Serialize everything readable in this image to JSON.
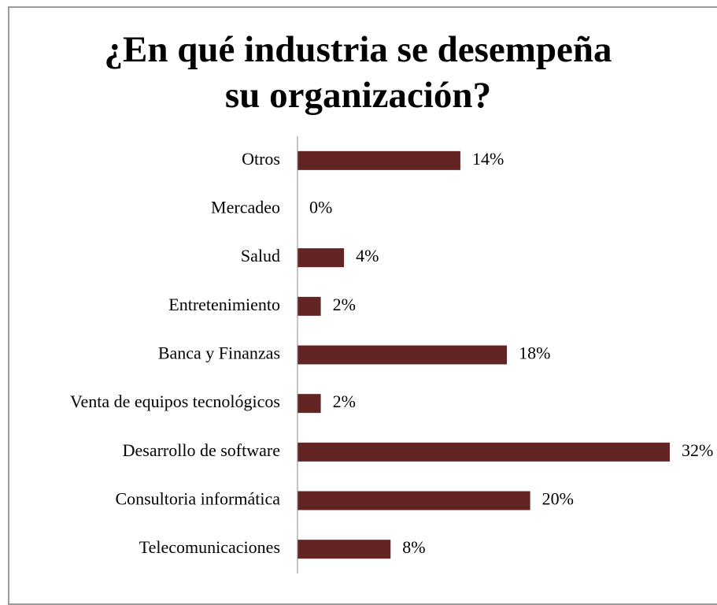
{
  "chart_data": {
    "type": "bar",
    "orientation": "horizontal",
    "title": "¿En qué industria se desempeña su organización?",
    "categories": [
      "Otros",
      "Mercadeo",
      "Salud",
      "Entretenimiento",
      "Banca y Finanzas",
      "Venta de equipos tecnológicos",
      "Desarrollo de software",
      "Consultoria informática",
      "Telecomunicaciones"
    ],
    "values": [
      14,
      0,
      4,
      2,
      18,
      2,
      32,
      20,
      8
    ],
    "value_labels": [
      "14%",
      "0%",
      "4%",
      "2%",
      "18%",
      "2%",
      "32%",
      "20%",
      "8%"
    ],
    "color": "#632523"
  }
}
